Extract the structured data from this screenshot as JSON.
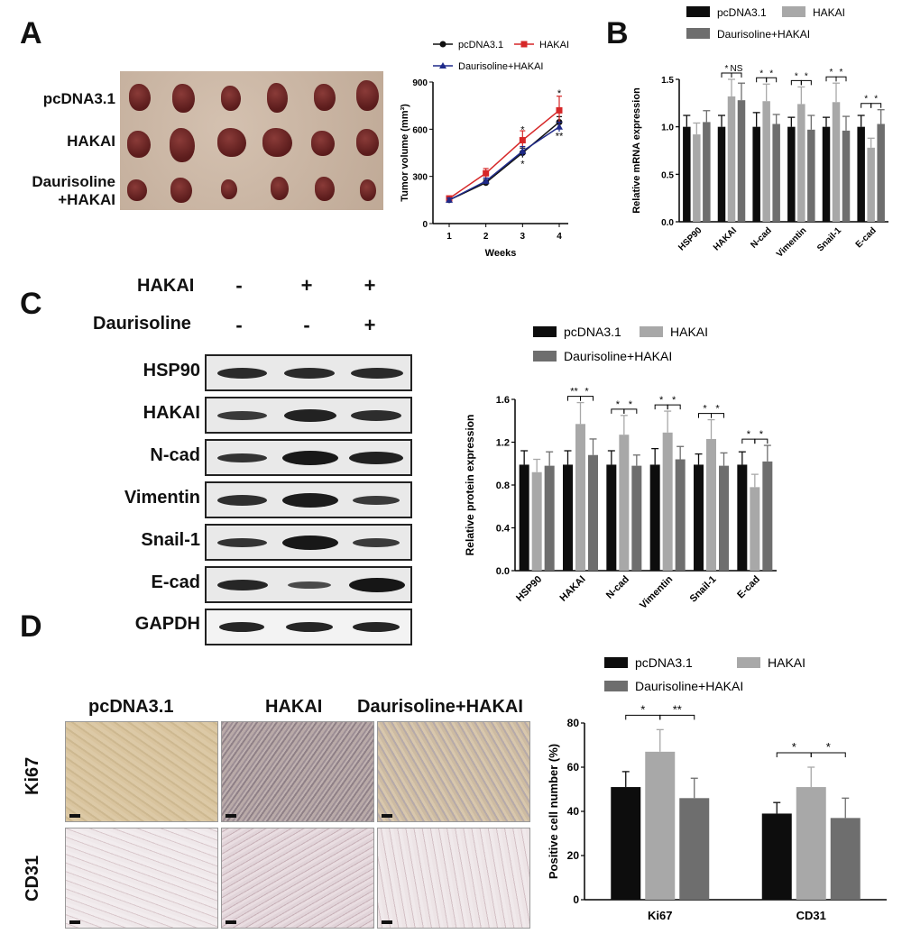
{
  "panels": {
    "a": "A",
    "b": "B",
    "c": "C",
    "d": "D"
  },
  "panel_a": {
    "rows": [
      "pcDNA3.1",
      "HAKAI",
      "Daurisoline",
      "+HAKAI"
    ]
  },
  "panel_c": {
    "treat_rows": [
      {
        "label": "HAKAI",
        "signs": [
          "-",
          "+",
          "+"
        ]
      },
      {
        "label": "Daurisoline",
        "signs": [
          "-",
          "-",
          "+"
        ]
      }
    ],
    "blots": [
      "HSP90",
      "HAKAI",
      "N-cad",
      "Vimentin",
      "Snail-1",
      "E-cad",
      "GAPDH"
    ]
  },
  "panel_d": {
    "columns": [
      "pcDNA3.1",
      "HAKAI",
      "Daurisoline+HAKAI"
    ],
    "rows": [
      "Ki67",
      "CD31"
    ]
  },
  "chart_data": [
    {
      "id": "tumor_volume",
      "type": "line",
      "x": [
        1,
        2,
        3,
        4
      ],
      "xticks": [
        "1",
        "2",
        "3",
        "4"
      ],
      "xlabel": "Weeks",
      "ylabel": "Tumor volume (mm³)",
      "ylim": [
        0,
        900
      ],
      "yticks": [
        "0",
        "300",
        "600",
        "900"
      ],
      "legend": "top",
      "series": [
        {
          "name": "pcDNA3.1",
          "color": "#111111",
          "marker": "circle",
          "values": [
            150,
            260,
            450,
            645
          ],
          "errors": [
            15,
            20,
            30,
            35
          ]
        },
        {
          "name": "HAKAI",
          "color": "#d62728",
          "marker": "square",
          "values": [
            160,
            320,
            530,
            720
          ],
          "errors": [
            15,
            30,
            60,
            90
          ]
        },
        {
          "name": "Daurisoline+HAKAI",
          "color": "#1f2a8a",
          "marker": "triangle",
          "values": [
            150,
            270,
            460,
            615
          ],
          "errors": [
            12,
            20,
            30,
            30
          ]
        }
      ],
      "annotations": [
        {
          "x": 3,
          "y": 600,
          "text": "*"
        },
        {
          "x": 3,
          "y": 380,
          "text": "*"
        },
        {
          "x": 4,
          "y": 830,
          "text": "*"
        },
        {
          "x": 4,
          "y": 560,
          "text": "**"
        }
      ]
    },
    {
      "id": "mrna",
      "type": "bar",
      "categories": [
        "HSP90",
        "HAKAI",
        "N-cad",
        "Vimentin",
        "Snail-1",
        "E-cad"
      ],
      "ylabel": "Relative mRNA expression",
      "ylim": [
        0,
        1.5
      ],
      "yticks": [
        "0.0",
        "0.5",
        "1.0",
        "1.5"
      ],
      "legend": "top",
      "series": [
        {
          "name": "pcDNA3.1",
          "color": "#0d0d0d",
          "values": [
            1.0,
            1.0,
            1.0,
            1.0,
            1.0,
            1.0
          ],
          "errors": [
            0.12,
            0.12,
            0.15,
            0.1,
            0.1,
            0.12
          ]
        },
        {
          "name": "HAKAI",
          "color": "#a8a8a8",
          "values": [
            0.92,
            1.32,
            1.27,
            1.24,
            1.26,
            0.78
          ],
          "errors": [
            0.12,
            0.18,
            0.18,
            0.18,
            0.2,
            0.1
          ]
        },
        {
          "name": "Daurisoline+HAKAI",
          "color": "#6e6e6e",
          "values": [
            1.05,
            1.28,
            1.03,
            0.97,
            0.96,
            1.03
          ],
          "errors": [
            0.12,
            0.18,
            0.1,
            0.15,
            0.15,
            0.15
          ]
        }
      ],
      "significance": [
        [
          "*",
          "NS"
        ],
        [
          "*",
          "*"
        ],
        [
          "*",
          "*"
        ],
        [
          "*",
          "*"
        ],
        [
          "*",
          "*"
        ]
      ]
    },
    {
      "id": "protein",
      "type": "bar",
      "categories": [
        "HSP90",
        "HAKAI",
        "N-cad",
        "Vimentin",
        "Snail-1",
        "E-cad"
      ],
      "ylabel": "Relative protein expression",
      "ylim": [
        0,
        1.6
      ],
      "yticks": [
        "0.0",
        "0.4",
        "0.8",
        "1.2",
        "1.6"
      ],
      "legend": "top",
      "series": [
        {
          "name": "pcDNA3.1",
          "color": "#0d0d0d",
          "values": [
            0.99,
            0.99,
            0.99,
            0.99,
            0.99,
            0.99
          ],
          "errors": [
            0.13,
            0.13,
            0.13,
            0.15,
            0.1,
            0.12
          ]
        },
        {
          "name": "HAKAI",
          "color": "#a8a8a8",
          "values": [
            0.92,
            1.37,
            1.27,
            1.29,
            1.23,
            0.78
          ],
          "errors": [
            0.12,
            0.2,
            0.18,
            0.2,
            0.18,
            0.12
          ]
        },
        {
          "name": "Daurisoline+HAKAI",
          "color": "#6e6e6e",
          "values": [
            0.98,
            1.08,
            0.98,
            1.04,
            0.98,
            1.02
          ],
          "errors": [
            0.13,
            0.15,
            0.1,
            0.12,
            0.12,
            0.15
          ]
        }
      ],
      "significance": [
        [
          "**",
          "*"
        ],
        [
          "*",
          "*"
        ],
        [
          "*",
          "*"
        ],
        [
          "*",
          "*"
        ],
        [
          "*",
          "*"
        ]
      ]
    },
    {
      "id": "positive_cells",
      "type": "bar",
      "categories": [
        "Ki67",
        "CD31"
      ],
      "ylabel": "Positive cell number (%)",
      "ylim": [
        0,
        80
      ],
      "yticks": [
        "0",
        "20",
        "40",
        "60",
        "80"
      ],
      "legend": "top",
      "series": [
        {
          "name": "pcDNA3.1",
          "color": "#0d0d0d",
          "values": [
            51,
            39
          ],
          "errors": [
            7,
            5
          ]
        },
        {
          "name": "HAKAI",
          "color": "#a8a8a8",
          "values": [
            67,
            51
          ],
          "errors": [
            10,
            9
          ]
        },
        {
          "name": "Daurisoline+HAKAI",
          "color": "#6e6e6e",
          "values": [
            46,
            37
          ],
          "errors": [
            9,
            9
          ]
        }
      ],
      "significance": [
        [
          "*",
          "**"
        ],
        [
          "*",
          "*"
        ]
      ]
    }
  ]
}
